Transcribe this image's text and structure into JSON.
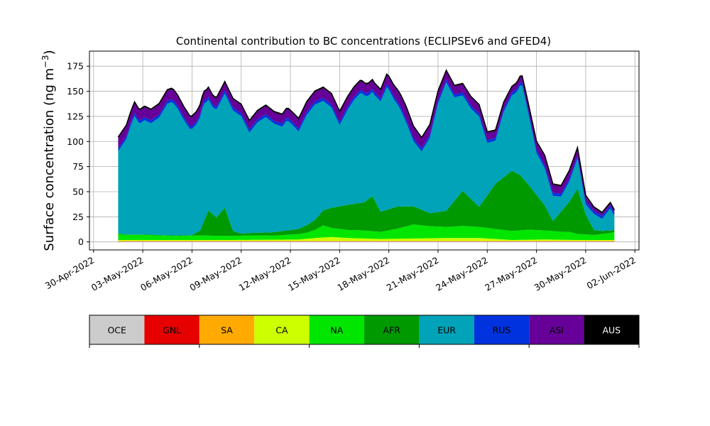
{
  "chart_data": {
    "type": "area",
    "stacked": true,
    "title": "Continental contribution to BC concentrations (ECLIPSEv6 and GFED4)",
    "xlabel": "",
    "ylabel_main": "Surface concentration (ng m",
    "ylabel_exp": "−3",
    "ylabel_close": ")",
    "ylim": [
      -8,
      190
    ],
    "xlim": [
      "2022-04-29T18:00",
      "2022-06-02T06:00"
    ],
    "x_start": "2022-05-01T12:00",
    "x_end": "2022-05-31T18:00",
    "y_ticks": [
      0,
      25,
      50,
      75,
      100,
      125,
      150,
      175
    ],
    "x_ticks": [
      {
        "date": "2022-04-30",
        "label": "30-Apr-2022"
      },
      {
        "date": "2022-05-03",
        "label": "03-May-2022"
      },
      {
        "date": "2022-05-06",
        "label": "06-May-2022"
      },
      {
        "date": "2022-05-09",
        "label": "09-May-2022"
      },
      {
        "date": "2022-05-12",
        "label": "12-May-2022"
      },
      {
        "date": "2022-05-15",
        "label": "15-May-2022"
      },
      {
        "date": "2022-05-18",
        "label": "18-May-2022"
      },
      {
        "date": "2022-05-21",
        "label": "21-May-2022"
      },
      {
        "date": "2022-05-24",
        "label": "24-May-2022"
      },
      {
        "date": "2022-05-27",
        "label": "27-May-2022"
      },
      {
        "date": "2022-05-30",
        "label": "30-May-2022"
      },
      {
        "date": "2022-06-02",
        "label": "02-Jun-2022"
      }
    ],
    "grid": true,
    "total_line_color": "#000000",
    "series": [
      {
        "name": "OCE",
        "color": "#cccccc",
        "points": [
          [
            0,
            0.3
          ],
          [
            30.25,
            0.3
          ]
        ]
      },
      {
        "name": "GNL",
        "color": "#e60000",
        "points": [
          [
            0,
            0.3
          ],
          [
            30.25,
            0.3
          ]
        ]
      },
      {
        "name": "SA",
        "color": "#ffaa00",
        "points": [
          [
            0,
            0.3
          ],
          [
            30.25,
            0.3
          ]
        ]
      },
      {
        "name": "CA",
        "color": "#ccff00",
        "points": [
          [
            0,
            1
          ],
          [
            7,
            1
          ],
          [
            11,
            1.5
          ],
          [
            12,
            3
          ],
          [
            13,
            4
          ],
          [
            14,
            3
          ],
          [
            16,
            2
          ],
          [
            18,
            2.5
          ],
          [
            20,
            3
          ],
          [
            22,
            3
          ],
          [
            23,
            2
          ],
          [
            24,
            1
          ],
          [
            26,
            1.5
          ],
          [
            28,
            1
          ],
          [
            30.25,
            1
          ]
        ]
      },
      {
        "name": "NA",
        "color": "#00e600",
        "points": [
          [
            0,
            6
          ],
          [
            0.5,
            5
          ],
          [
            1.5,
            5
          ],
          [
            2.5,
            4.5
          ],
          [
            3.5,
            4
          ],
          [
            5,
            4.5
          ],
          [
            7,
            4
          ],
          [
            8,
            4.5
          ],
          [
            9.5,
            4
          ],
          [
            10.5,
            5
          ],
          [
            11.5,
            6
          ],
          [
            12,
            8
          ],
          [
            12.5,
            12
          ],
          [
            13,
            9
          ],
          [
            14,
            8
          ],
          [
            15,
            8
          ],
          [
            16,
            7
          ],
          [
            17,
            10
          ],
          [
            17.5,
            12
          ],
          [
            18,
            14
          ],
          [
            19,
            12
          ],
          [
            20,
            11
          ],
          [
            21,
            12
          ],
          [
            22,
            11
          ],
          [
            23,
            10
          ],
          [
            24,
            9
          ],
          [
            25,
            10
          ],
          [
            26,
            9
          ],
          [
            27,
            8
          ],
          [
            27.5,
            8
          ],
          [
            28,
            6
          ],
          [
            29,
            5
          ],
          [
            30,
            7
          ],
          [
            30.25,
            8
          ]
        ]
      },
      {
        "name": "AFR",
        "color": "#009900",
        "points": [
          [
            0,
            0.5
          ],
          [
            4.5,
            0.5
          ],
          [
            5,
            5
          ],
          [
            5.5,
            25
          ],
          [
            6,
            18
          ],
          [
            6.5,
            28
          ],
          [
            7,
            5
          ],
          [
            7.5,
            2
          ],
          [
            9,
            3
          ],
          [
            10,
            4
          ],
          [
            11,
            5
          ],
          [
            12,
            10
          ],
          [
            13,
            20
          ],
          [
            14,
            25
          ],
          [
            15,
            28
          ],
          [
            15.5,
            35
          ],
          [
            16,
            20
          ],
          [
            17,
            22
          ],
          [
            18,
            18
          ],
          [
            19,
            13
          ],
          [
            20,
            16
          ],
          [
            21,
            35
          ],
          [
            22,
            20
          ],
          [
            23,
            45
          ],
          [
            24,
            60
          ],
          [
            24.5,
            55
          ],
          [
            25,
            45
          ],
          [
            26,
            25
          ],
          [
            26.5,
            10
          ],
          [
            27,
            20
          ],
          [
            27.5,
            30
          ],
          [
            28,
            45
          ],
          [
            28.5,
            20
          ],
          [
            29,
            5
          ],
          [
            29.5,
            3
          ],
          [
            30.25,
            2
          ]
        ]
      },
      {
        "name": "EUR",
        "color": "#00a3b8",
        "points": [
          [
            0,
            82
          ],
          [
            0.5,
            95
          ],
          [
            0.8,
            110
          ],
          [
            1.0,
            118
          ],
          [
            1.3,
            110
          ],
          [
            1.6,
            114
          ],
          [
            2,
            111
          ],
          [
            2.5,
            117
          ],
          [
            3,
            131
          ],
          [
            3.3,
            133
          ],
          [
            3.6,
            127
          ],
          [
            4,
            115
          ],
          [
            4.4,
            105
          ],
          [
            4.8,
            108
          ],
          [
            5.2,
            118
          ],
          [
            5.4,
            112
          ],
          [
            5.8,
            106
          ],
          [
            6.2,
            110
          ],
          [
            7,
            120
          ],
          [
            7.5,
            117
          ],
          [
            8,
            100
          ],
          [
            8.5,
            110
          ],
          [
            9,
            115
          ],
          [
            9.5,
            108
          ],
          [
            10,
            104
          ],
          [
            10.3,
            110
          ],
          [
            10.7,
            103
          ],
          [
            11,
            97
          ],
          [
            11.5,
            110
          ],
          [
            12,
            115
          ],
          [
            12.5,
            109
          ],
          [
            13,
            100
          ],
          [
            13.5,
            81
          ],
          [
            14,
            95
          ],
          [
            14.4,
            104
          ],
          [
            14.8,
            110
          ],
          [
            15.2,
            103
          ],
          [
            15.6,
            104
          ],
          [
            16,
            110
          ],
          [
            16.4,
            123
          ],
          [
            16.8,
            108
          ],
          [
            17.2,
            97
          ],
          [
            17.6,
            82
          ],
          [
            18,
            65
          ],
          [
            18.5,
            58
          ],
          [
            19,
            75
          ],
          [
            19.5,
            108
          ],
          [
            20,
            128
          ],
          [
            20.5,
            103
          ],
          [
            21,
            95
          ],
          [
            21.5,
            90
          ],
          [
            22,
            90
          ],
          [
            22.5,
            52
          ],
          [
            23,
            43
          ],
          [
            23.5,
            65
          ],
          [
            24,
            75
          ],
          [
            24.3,
            81
          ],
          [
            24.6,
            93
          ],
          [
            25,
            71
          ],
          [
            25.5,
            42
          ],
          [
            26,
            37
          ],
          [
            26.5,
            25
          ],
          [
            27,
            15
          ],
          [
            27.5,
            20
          ],
          [
            28,
            30
          ],
          [
            28.5,
            10
          ],
          [
            29,
            16
          ],
          [
            29.5,
            12
          ],
          [
            30,
            22
          ],
          [
            30.25,
            14
          ]
        ]
      },
      {
        "name": "RUS",
        "color": "#0033dd",
        "points": [
          [
            0,
            3
          ],
          [
            30.25,
            3
          ]
        ]
      },
      {
        "name": "ASI",
        "color": "#660099",
        "points": [
          [
            0,
            10
          ],
          [
            3,
            10
          ],
          [
            6,
            8
          ],
          [
            9,
            8
          ],
          [
            13,
            10
          ],
          [
            16,
            8
          ],
          [
            17.5,
            12
          ],
          [
            18.5,
            10
          ],
          [
            20,
            8
          ],
          [
            22,
            8
          ],
          [
            24,
            5
          ],
          [
            25,
            6
          ],
          [
            26,
            9
          ],
          [
            27,
            7
          ],
          [
            28,
            7
          ],
          [
            29,
            3
          ],
          [
            30,
            2
          ],
          [
            30.25,
            2
          ]
        ]
      },
      {
        "name": "AUS",
        "color": "#000000",
        "points": [
          [
            0,
            1
          ],
          [
            30.25,
            1
          ]
        ]
      }
    ],
    "legend": {
      "placement": "bottom",
      "entries": [
        "OCE",
        "GNL",
        "SA",
        "CA",
        "NA",
        "AFR",
        "EUR",
        "RUS",
        "ASI",
        "AUS"
      ]
    }
  }
}
